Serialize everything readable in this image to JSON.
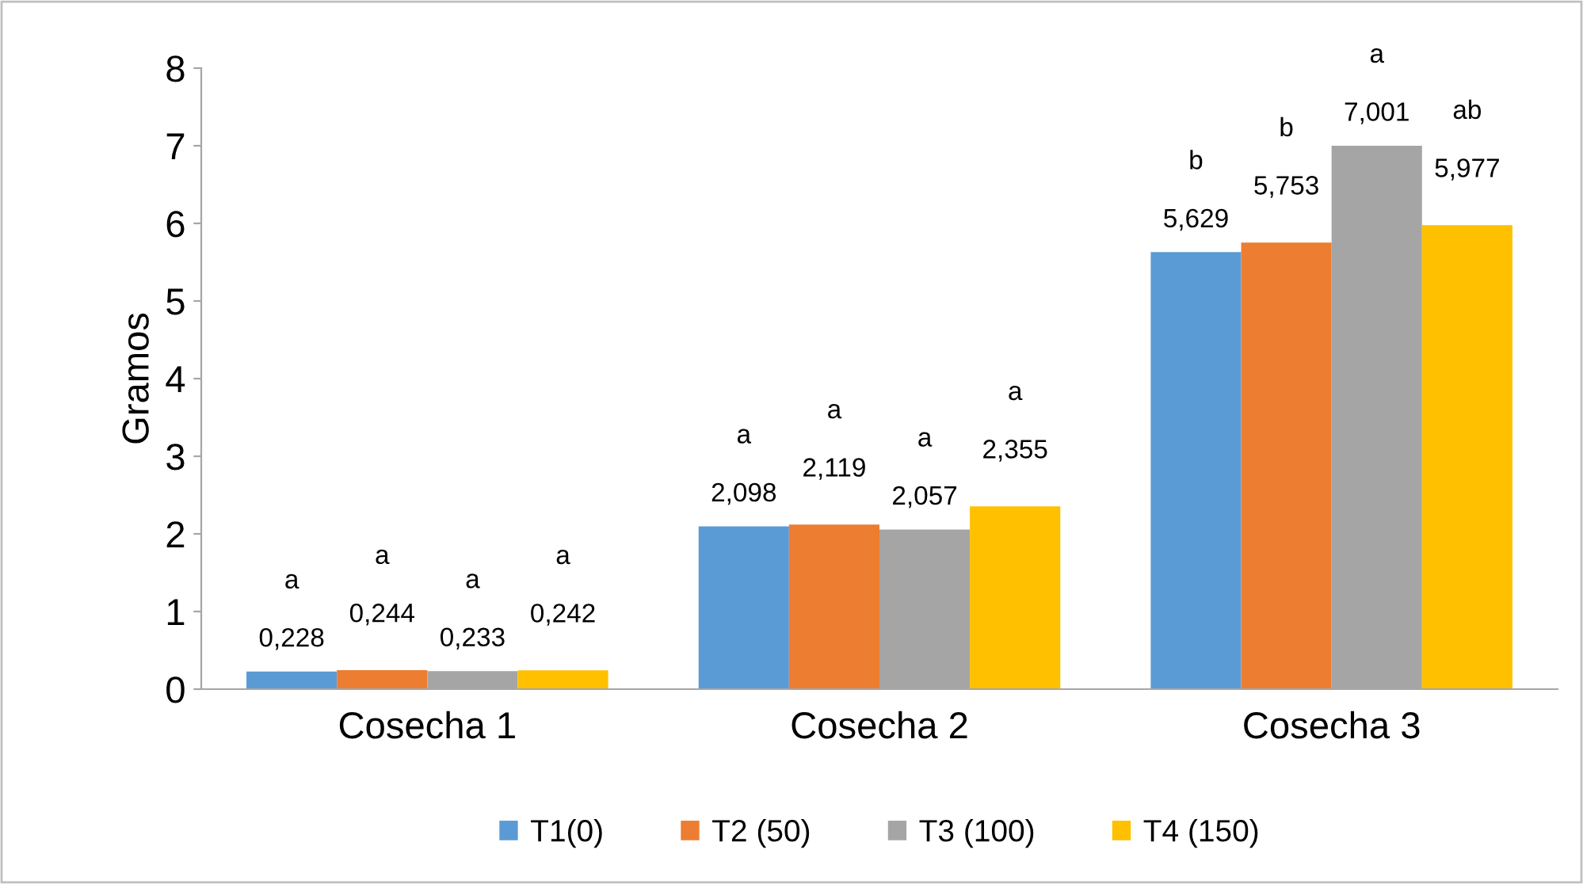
{
  "chart_data": {
    "type": "bar",
    "ylabel": "Gramos",
    "categories": [
      "Cosecha 1",
      "Cosecha 2",
      "Cosecha 3"
    ],
    "series": [
      {
        "name": "T1(0)",
        "color": "#5b9bd5",
        "values": [
          0.228,
          2.098,
          5.629
        ],
        "value_labels": [
          "0,228",
          "2,098",
          "5,629"
        ]
      },
      {
        "name": "T2 (50)",
        "color": "#ed7d31",
        "values": [
          0.244,
          2.119,
          5.753
        ],
        "value_labels": [
          "0,244",
          "2,119",
          "5,753"
        ]
      },
      {
        "name": "T3 (100)",
        "color": "#a5a5a5",
        "values": [
          0.233,
          2.057,
          7.001
        ],
        "value_labels": [
          "0,233",
          "2,057",
          "7,001"
        ]
      },
      {
        "name": "T4 (150)",
        "color": "#ffc000",
        "values": [
          0.242,
          2.355,
          5.977
        ],
        "value_labels": [
          "0,242",
          "2,355",
          "5,977"
        ]
      }
    ],
    "annotations": [
      "a",
      "a",
      "a",
      "a",
      "a",
      "a",
      "a",
      "a",
      "b",
      "b",
      "a",
      "ab"
    ],
    "ylim": [
      0,
      8
    ],
    "yticks": [
      0,
      1,
      2,
      3,
      4,
      5,
      6,
      7,
      8
    ],
    "grid": false,
    "legend": "bottom"
  }
}
